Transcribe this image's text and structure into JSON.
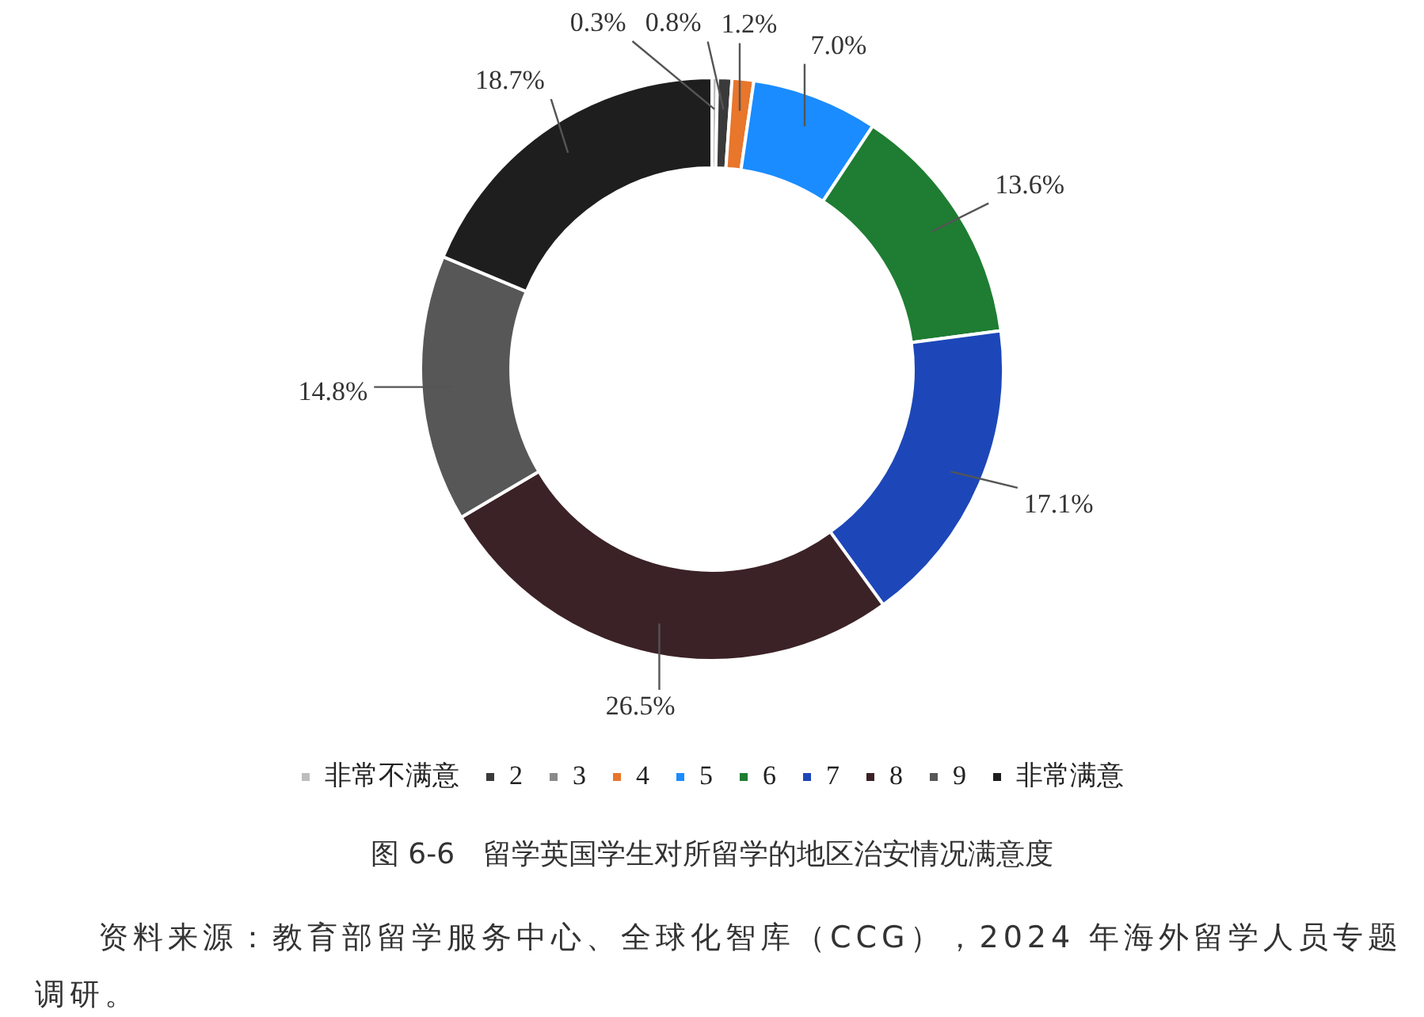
{
  "chart_data": {
    "type": "donut",
    "title": "图 6-6　留学英国学生对所留学的地区治安情况满意度",
    "annotations": [
      "资料来源：教育部留学服务中心、全球化智库（CCG），2024 年海外留学人员专题调研。"
    ],
    "categories": [
      "非常不满意",
      "2",
      "3",
      "4",
      "5",
      "6",
      "7",
      "8",
      "9",
      "非常满意"
    ],
    "values": [
      0.3,
      0.8,
      0,
      1.2,
      7.0,
      13.6,
      17.1,
      26.5,
      14.8,
      18.7
    ],
    "value_labels": [
      "0.3%",
      "0.8%",
      null,
      "1.2%",
      "7.0%",
      "13.6%",
      "17.1%",
      "26.5%",
      "14.8%",
      "18.7%"
    ],
    "colors": [
      "#bdbdbd",
      "#3a3a3a",
      "#8a8a8a",
      "#e8762b",
      "#1a8cff",
      "#1e7d32",
      "#1d47b8",
      "#3b2226",
      "#575757",
      "#1e1e1e"
    ],
    "legend": "bottom"
  }
}
